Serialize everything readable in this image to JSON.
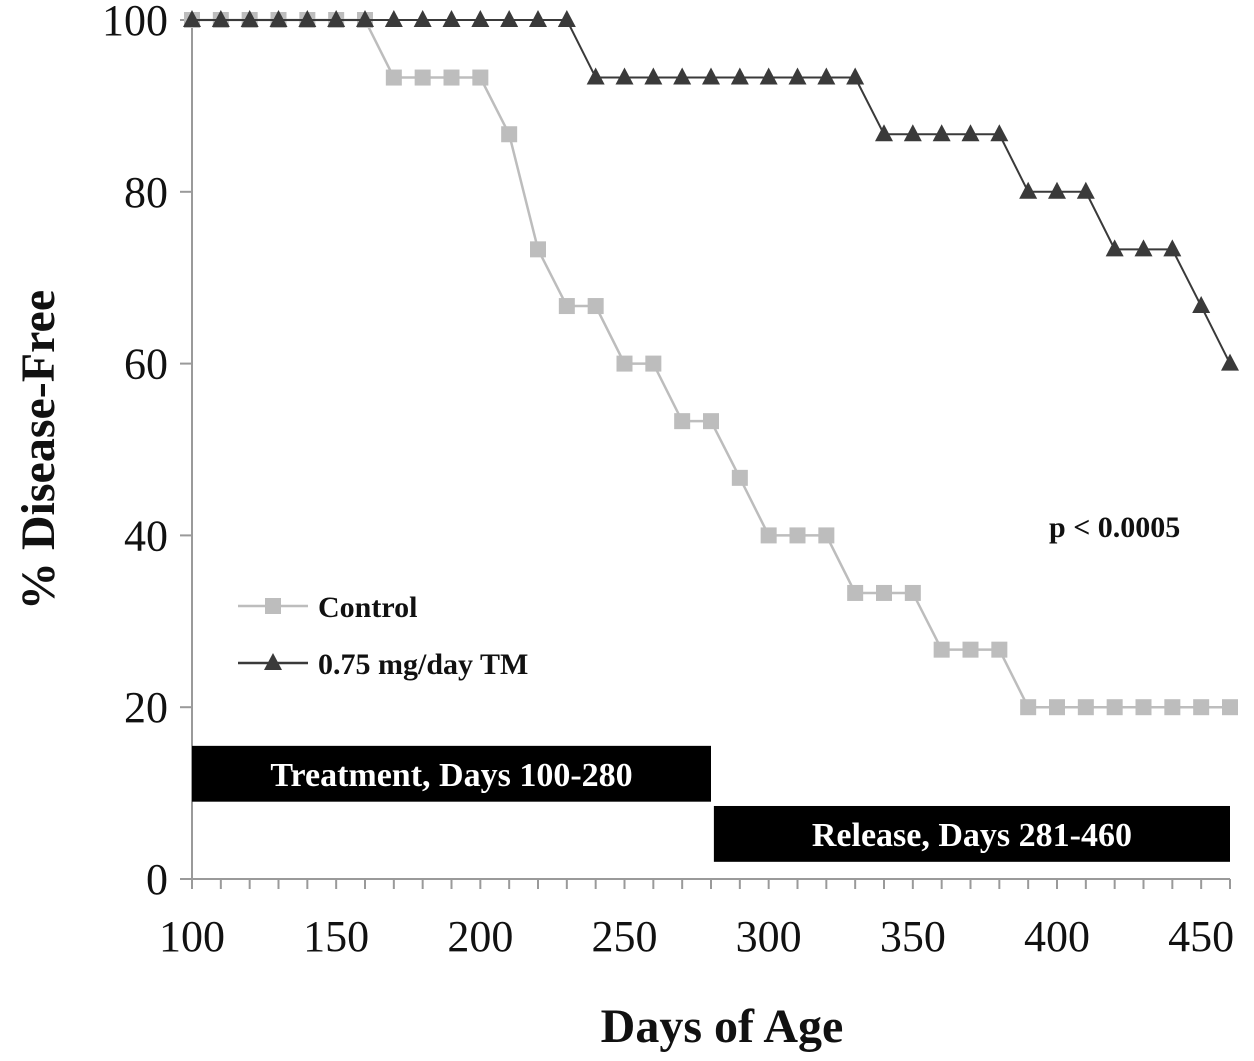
{
  "chart_data": {
    "type": "line",
    "title": "",
    "xlabel": "Days of Age",
    "ylabel": "% Disease-Free",
    "xlim": [
      100,
      460
    ],
    "ylim": [
      0,
      100
    ],
    "x_ticks": [
      100,
      150,
      200,
      250,
      300,
      350,
      400,
      450
    ],
    "y_ticks": [
      0,
      20,
      40,
      60,
      80,
      100
    ],
    "grid": false,
    "legend_position": "left-center",
    "series": [
      {
        "name": "Control",
        "marker": "square",
        "color": "#bdbdbd",
        "points": [
          [
            100,
            100
          ],
          [
            110,
            100
          ],
          [
            120,
            100
          ],
          [
            130,
            100
          ],
          [
            140,
            100
          ],
          [
            150,
            100
          ],
          [
            160,
            100
          ],
          [
            170,
            93.3
          ],
          [
            180,
            93.3
          ],
          [
            190,
            93.3
          ],
          [
            200,
            93.3
          ],
          [
            210,
            86.7
          ],
          [
            220,
            73.3
          ],
          [
            230,
            66.7
          ],
          [
            240,
            66.7
          ],
          [
            250,
            60
          ],
          [
            260,
            60
          ],
          [
            270,
            53.3
          ],
          [
            280,
            53.3
          ],
          [
            290,
            46.7
          ],
          [
            300,
            40
          ],
          [
            310,
            40
          ],
          [
            320,
            40
          ],
          [
            330,
            33.3
          ],
          [
            340,
            33.3
          ],
          [
            350,
            33.3
          ],
          [
            360,
            26.7
          ],
          [
            370,
            26.7
          ],
          [
            380,
            26.7
          ],
          [
            390,
            20
          ],
          [
            400,
            20
          ],
          [
            410,
            20
          ],
          [
            420,
            20
          ],
          [
            430,
            20
          ],
          [
            440,
            20
          ],
          [
            450,
            20
          ],
          [
            460,
            20
          ]
        ]
      },
      {
        "name": "0.75 mg/day TM",
        "marker": "triangle",
        "color": "#3a3a3a",
        "points": [
          [
            100,
            100
          ],
          [
            110,
            100
          ],
          [
            120,
            100
          ],
          [
            130,
            100
          ],
          [
            140,
            100
          ],
          [
            150,
            100
          ],
          [
            160,
            100
          ],
          [
            170,
            100
          ],
          [
            180,
            100
          ],
          [
            190,
            100
          ],
          [
            200,
            100
          ],
          [
            210,
            100
          ],
          [
            220,
            100
          ],
          [
            230,
            100
          ],
          [
            240,
            93.3
          ],
          [
            250,
            93.3
          ],
          [
            260,
            93.3
          ],
          [
            270,
            93.3
          ],
          [
            280,
            93.3
          ],
          [
            290,
            93.3
          ],
          [
            300,
            93.3
          ],
          [
            310,
            93.3
          ],
          [
            320,
            93.3
          ],
          [
            330,
            93.3
          ],
          [
            340,
            86.7
          ],
          [
            350,
            86.7
          ],
          [
            360,
            86.7
          ],
          [
            370,
            86.7
          ],
          [
            380,
            86.7
          ],
          [
            390,
            80
          ],
          [
            400,
            80
          ],
          [
            410,
            80
          ],
          [
            420,
            73.3
          ],
          [
            430,
            73.3
          ],
          [
            440,
            73.3
          ],
          [
            450,
            66.7
          ],
          [
            460,
            60
          ]
        ]
      }
    ],
    "annotations": [
      {
        "text": "p < 0.0005",
        "x": 420,
        "y": 41
      }
    ],
    "periods": [
      {
        "label": "Treatment, Days 100-280",
        "x_start": 100,
        "x_end": 280,
        "y_bottom": 9,
        "y_top": 15.5
      },
      {
        "label": "Release, Days 281-460",
        "x_start": 281,
        "x_end": 460,
        "y_bottom": 2,
        "y_top": 8.5
      }
    ]
  }
}
